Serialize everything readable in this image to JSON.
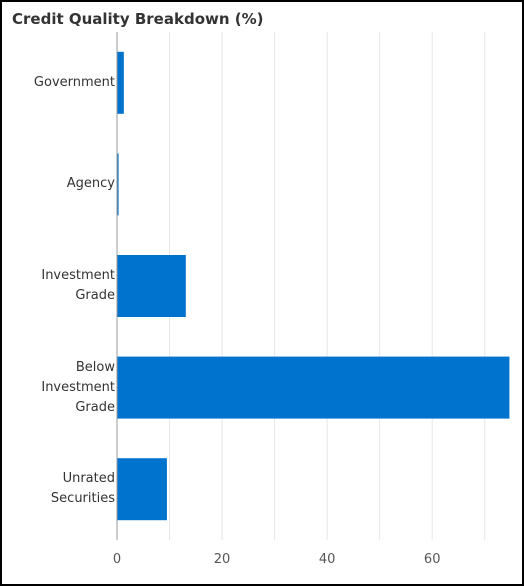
{
  "chart_data": {
    "type": "hbar",
    "title": "Credit Quality Breakdown (%)",
    "categories": [
      "Government",
      "Agency",
      "Investment Grade",
      "Below Investment Grade",
      "Unrated Securities"
    ],
    "values": [
      1.3,
      0.3,
      13.1,
      74.7,
      9.5
    ],
    "color": "#0073cf",
    "xlim": [
      0,
      75
    ],
    "xticks": [
      0,
      20,
      40,
      60
    ],
    "minor_xticks": [
      10,
      30,
      50,
      70
    ],
    "grid": true
  }
}
